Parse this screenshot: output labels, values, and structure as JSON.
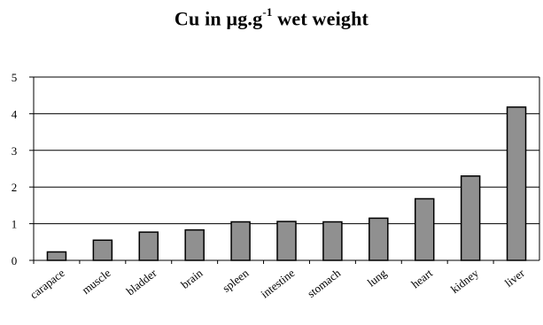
{
  "chart_data": {
    "type": "bar",
    "title_main": "Cu in μg.g",
    "title_superscript": "-1",
    "title_suffix": " wet weight",
    "xlabel": "",
    "ylabel": "",
    "ylim": [
      0,
      5
    ],
    "yticks": [
      "0",
      "1",
      "2",
      "3",
      "4",
      "5"
    ],
    "grid": true,
    "bar_color": "#909090",
    "categories": [
      "carapace",
      "muscle",
      "bladder",
      "brain",
      "spleen",
      "intestine",
      "stomach",
      "lung",
      "heart",
      "kidney",
      "liver"
    ],
    "values": [
      0.23,
      0.55,
      0.77,
      0.83,
      1.05,
      1.06,
      1.05,
      1.15,
      1.68,
      2.3,
      4.18
    ]
  }
}
